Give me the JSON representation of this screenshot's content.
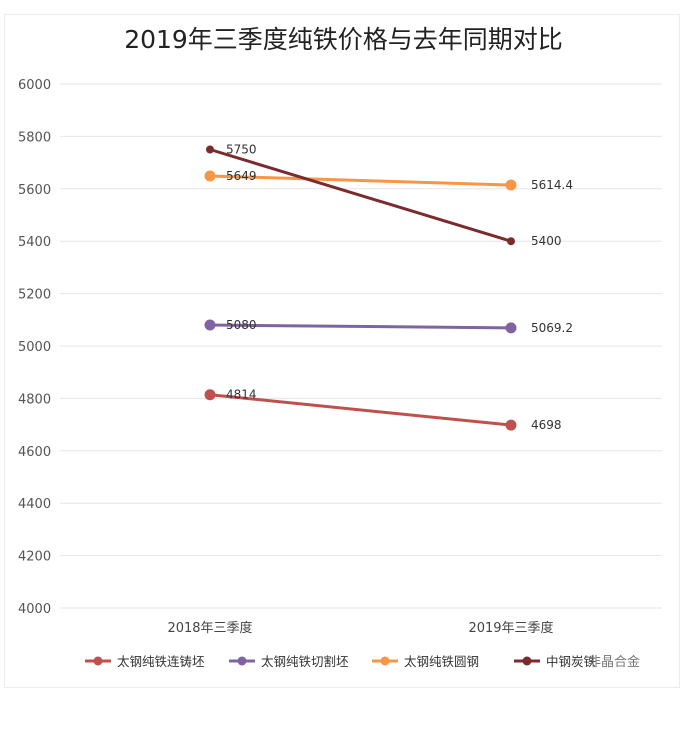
{
  "chart_data": {
    "type": "line",
    "title": "2019年三季度纯铁价格与去年同期对比",
    "xlabel": "",
    "ylabel": "",
    "categories": [
      "2018年三季度",
      "2019年三季度"
    ],
    "ylim": [
      4000,
      6000
    ],
    "yticks": [
      4000,
      4200,
      4400,
      4600,
      4800,
      5000,
      5200,
      5400,
      5600,
      5800,
      6000
    ],
    "grid": true,
    "legend_position": "bottom",
    "series": [
      {
        "name": "太钢纯铁连铸坯",
        "color": "#c0504d",
        "values": [
          4814,
          4698
        ],
        "labels": [
          "4814",
          "4698"
        ]
      },
      {
        "name": "太钢纯铁切割坯",
        "color": "#8064a2",
        "values": [
          5080,
          5069.2
        ],
        "labels": [
          "5080",
          "5069.2"
        ]
      },
      {
        "name": "太钢纯铁圆钢",
        "color": "#f79646",
        "values": [
          5649,
          5614.4
        ],
        "labels": [
          "5649",
          "5614.4"
        ]
      },
      {
        "name": "中钢炭铁",
        "color": "#7b2b2e",
        "values": [
          5750,
          5400
        ],
        "labels": [
          "5750",
          "5400"
        ]
      }
    ]
  },
  "watermark": "非晶合金"
}
